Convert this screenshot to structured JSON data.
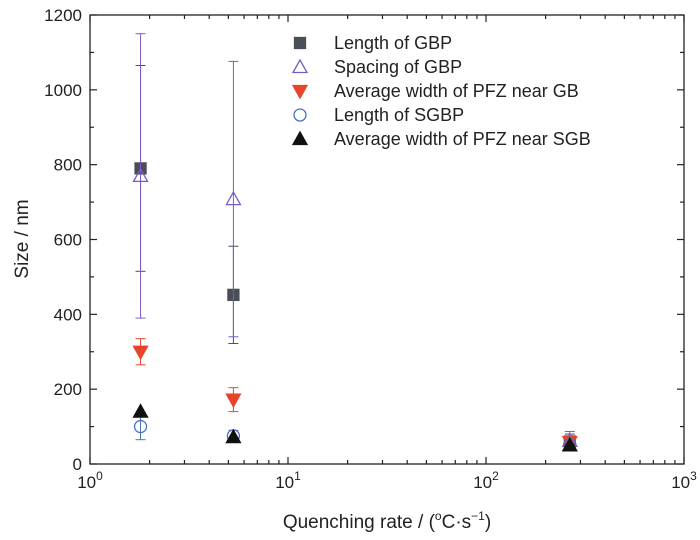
{
  "chart_data": {
    "type": "scatter",
    "title": "",
    "xlabel": {
      "prefix": "Quenching rate / (",
      "degree": "o",
      "unit": "C·s",
      "exp": "−1",
      "suffix": ")"
    },
    "ylabel": "Size / nm",
    "xscale": "log",
    "xlim": [
      1,
      1000
    ],
    "ylim": [
      0,
      1200
    ],
    "xticks": [
      {
        "value": 1,
        "base": "10",
        "exp": "0"
      },
      {
        "value": 10,
        "base": "10",
        "exp": "1"
      },
      {
        "value": 100,
        "base": "10",
        "exp": "2"
      },
      {
        "value": 1000,
        "base": "10",
        "exp": "3"
      }
    ],
    "yticks": [
      0,
      200,
      400,
      600,
      800,
      1000,
      1200
    ],
    "legend_position": "top-right",
    "series": [
      {
        "name": "Length of GBP",
        "marker": "square",
        "filled": true,
        "color": "#4a4f57",
        "points": [
          {
            "x": 1.8,
            "y": 790,
            "err": 275
          },
          {
            "x": 5.3,
            "y": 452,
            "err": 130
          },
          {
            "x": 265,
            "y": 60,
            "err": 20
          }
        ]
      },
      {
        "name": "Spacing of GBP",
        "marker": "triangle-up",
        "filled": false,
        "color": "#7a5cc4",
        "points": [
          {
            "x": 1.8,
            "y": 770,
            "err": 380
          },
          {
            "x": 5.3,
            "y": 708,
            "err": 368
          },
          {
            "x": 265,
            "y": 62,
            "err": 25
          }
        ]
      },
      {
        "name": "Average width of PFZ near GB",
        "marker": "triangle-down",
        "filled": true,
        "color": "#e8432b",
        "points": [
          {
            "x": 1.8,
            "y": 300,
            "err": 35
          },
          {
            "x": 5.3,
            "y": 172,
            "err": 32
          },
          {
            "x": 265,
            "y": 58,
            "err": 15
          }
        ]
      },
      {
        "name": "Length of SGBP",
        "marker": "circle",
        "filled": false,
        "color": "#4d6fc4",
        "points": [
          {
            "x": 1.8,
            "y": 100,
            "err": 35
          },
          {
            "x": 5.3,
            "y": 75,
            "err": 15
          },
          {
            "x": 265,
            "y": 52,
            "err": 12
          }
        ]
      },
      {
        "name": "Average width of PFZ near SGB",
        "marker": "triangle-up",
        "filled": true,
        "color": "#111111",
        "points": [
          {
            "x": 1.8,
            "y": 140,
            "err": 0
          },
          {
            "x": 5.3,
            "y": 72,
            "err": 0
          },
          {
            "x": 265,
            "y": 50,
            "err": 0
          }
        ]
      }
    ]
  }
}
